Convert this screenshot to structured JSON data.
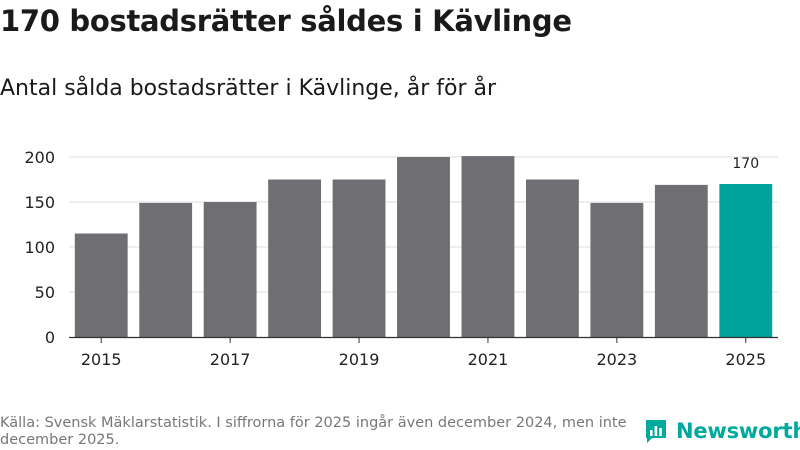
{
  "title": "170 bostadsrätter såldes i Kävlinge",
  "subtitle": "Antal sålda bostadsrätter i Kävlinge, år för år",
  "source": "Källa: Svensk Mäklarstatistik. I siffrorna för 2025 ingår även december 2024, men inte december 2025.",
  "brand": "Newsworthy",
  "colors": {
    "bar": "#6f6f73",
    "highlight": "#00a39b",
    "grid": "#dddddd",
    "brand": "#00a99d"
  },
  "chart_data": {
    "type": "bar",
    "title": "Antal sålda bostadsrätter i Kävlinge, år för år",
    "categories": [
      "2015",
      "2016",
      "2017",
      "2018",
      "2019",
      "2020",
      "2021",
      "2022",
      "2023",
      "2024",
      "2025"
    ],
    "values": [
      115,
      149,
      150,
      175,
      175,
      200,
      201,
      175,
      149,
      169,
      170
    ],
    "highlight": "2025",
    "highlight_label": "170",
    "x_tick_labels": [
      "2015",
      "2017",
      "2019",
      "2021",
      "2023",
      "2025"
    ],
    "y_ticks": [
      0,
      50,
      100,
      150,
      200
    ],
    "ylim": [
      0,
      200
    ],
    "xlabel": "",
    "ylabel": "",
    "grid": true
  }
}
